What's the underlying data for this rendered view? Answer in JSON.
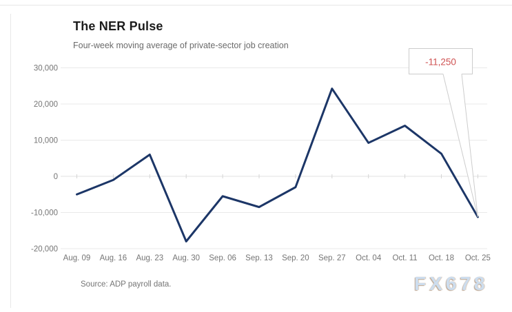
{
  "header": {
    "title": "The NER Pulse",
    "subtitle": "Four-week moving average of private-sector job creation"
  },
  "footer": {
    "source": "Source: ADP payroll data."
  },
  "watermark": {
    "text": "FX678"
  },
  "colors": {
    "line": "#1c3667",
    "grid": "#e9e9e9",
    "zero_grid": "#e2e2e2",
    "axis_label": "#757575",
    "annotation_text": "#cf5252",
    "annotation_border": "#cccccc",
    "frame_border": "#e7e7e7"
  },
  "chart_data": {
    "type": "line",
    "title": "The NER Pulse",
    "subtitle": "Four-week moving average of private-sector job creation",
    "categories": [
      "Aug. 09",
      "Aug. 16",
      "Aug. 23",
      "Aug. 30",
      "Sep. 06",
      "Sep. 13",
      "Sep. 20",
      "Sep. 27",
      "Oct. 04",
      "Oct. 11",
      "Oct. 18",
      "Oct. 25"
    ],
    "values": [
      -5000,
      -1000,
      6000,
      -18000,
      -5500,
      -8500,
      -3000,
      24250,
      9250,
      14000,
      6250,
      -11250
    ],
    "xlabel": "",
    "ylabel": "",
    "ylim": [
      -20000,
      30000
    ],
    "y_ticks": [
      30000,
      20000,
      10000,
      0,
      -10000,
      -20000
    ],
    "grid": true,
    "legend_position": "none",
    "annotation": {
      "label": "-11,250",
      "value": -11250,
      "target_category": "Oct. 25"
    },
    "source": "Source: ADP payroll data."
  }
}
